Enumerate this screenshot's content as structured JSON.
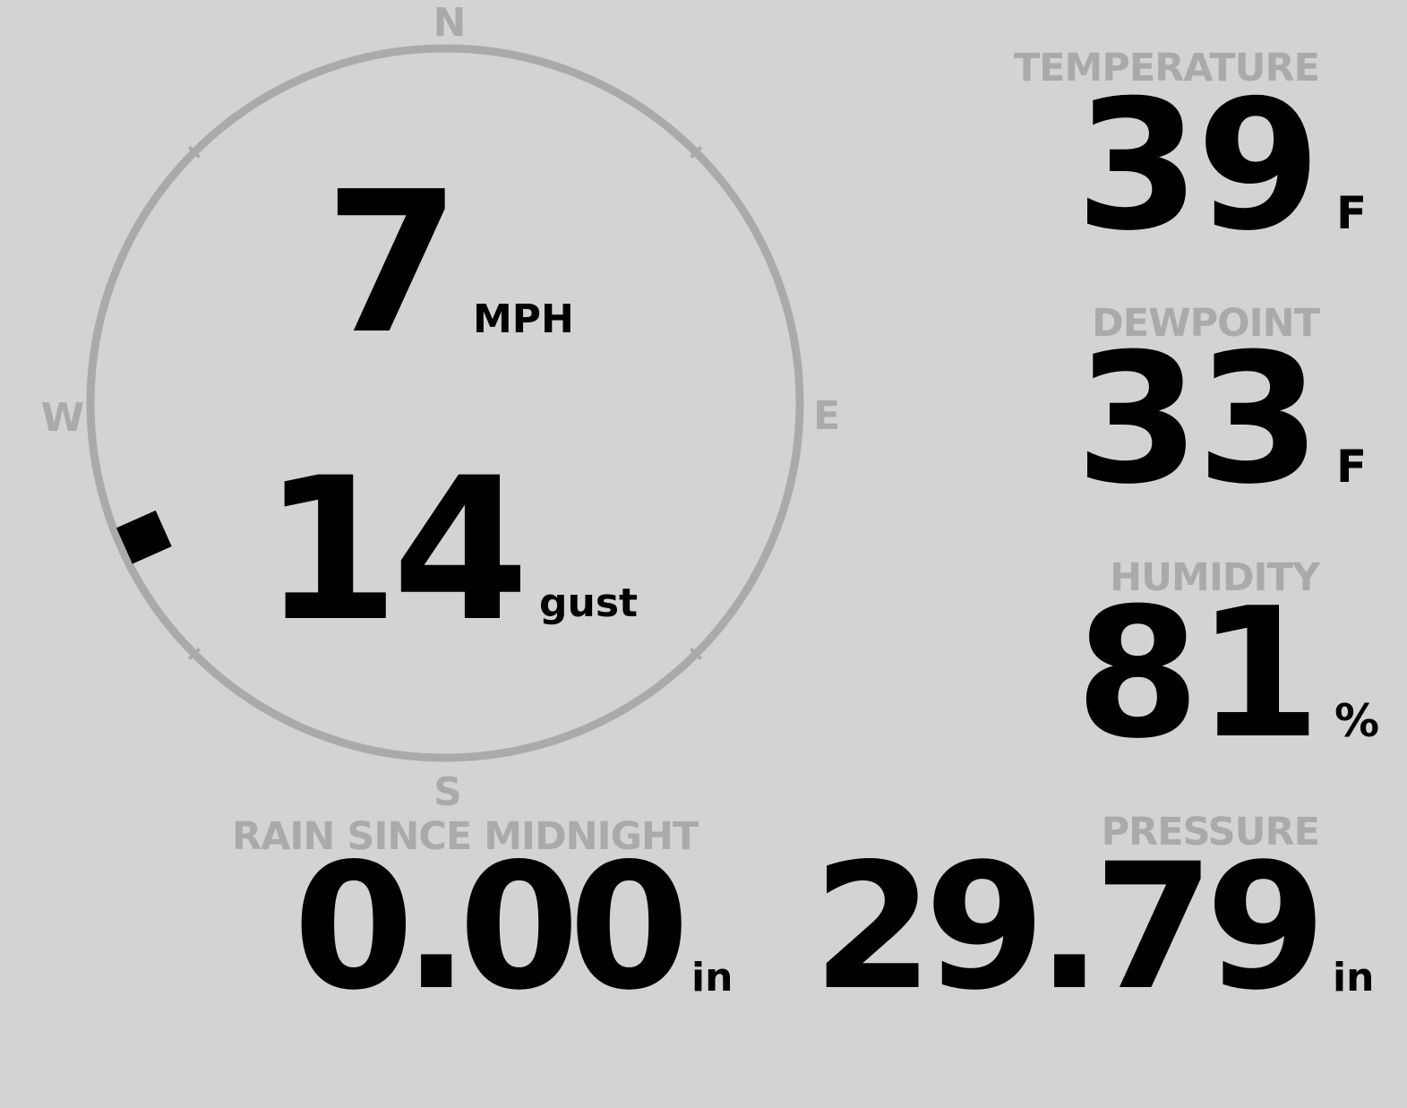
{
  "wind": {
    "compass": {
      "north": "N",
      "east": "E",
      "south": "S",
      "west": "W"
    },
    "direction_degrees": 246,
    "speed": "7",
    "speed_unit": "MPH",
    "gust": "14",
    "gust_unit": "gust"
  },
  "temperature": {
    "label": "TEMPERATURE",
    "value": "39",
    "unit": "F"
  },
  "dewpoint": {
    "label": "DEWPOINT",
    "value": "33",
    "unit": "F"
  },
  "humidity": {
    "label": "HUMIDITY",
    "value": "81",
    "unit": "%"
  },
  "rain": {
    "label": "RAIN SINCE MIDNIGHT",
    "value": "0.00",
    "unit": "in"
  },
  "pressure": {
    "label": "PRESSURE",
    "value": "29.79",
    "unit": "in"
  },
  "colors": {
    "background": "#d3d3d3",
    "muted": "#aaaaaa",
    "foreground": "#000000"
  }
}
